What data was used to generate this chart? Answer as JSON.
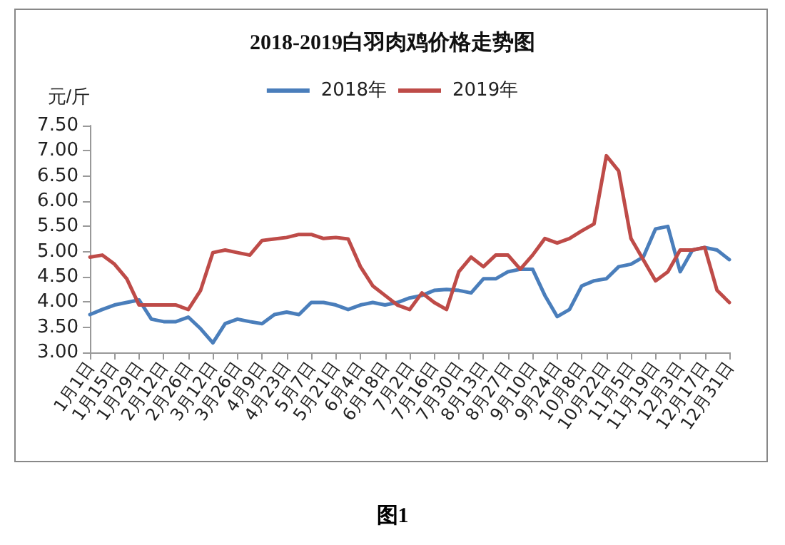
{
  "chart_data": {
    "type": "line",
    "title": "2018-2019白羽肉鸡价格走势图",
    "ylabel": "元/斤",
    "annotations": [
      "图1"
    ],
    "categories": [
      "1月1日",
      null,
      "1月15日",
      null,
      "1月29日",
      null,
      "2月12日",
      null,
      "2月26日",
      null,
      "3月12日",
      null,
      "3月26日",
      null,
      "4月9日",
      null,
      "4月23日",
      null,
      "5月7日",
      null,
      "5月21日",
      null,
      "6月4日",
      null,
      "6月18日",
      null,
      "7月2日",
      null,
      "7月16日",
      null,
      "7月30日",
      null,
      "8月13日",
      null,
      "8月27日",
      null,
      "9月10日",
      null,
      "9月24日",
      null,
      "10月8日",
      null,
      "10月22日",
      null,
      "11月5日",
      null,
      "11月19日",
      null,
      "12月3日",
      null,
      "12月17日",
      null,
      "12月31日"
    ],
    "series": [
      {
        "name": "2018年",
        "color": "#4a7ebb",
        "values": [
          3.75,
          3.85,
          3.94,
          3.99,
          4.04,
          3.66,
          3.61,
          3.61,
          3.7,
          3.47,
          3.19,
          3.57,
          3.66,
          3.61,
          3.57,
          3.75,
          3.8,
          3.75,
          3.99,
          3.99,
          3.94,
          3.85,
          3.94,
          3.99,
          3.94,
          3.99,
          4.08,
          4.13,
          4.23,
          4.25,
          4.23,
          4.18,
          4.46,
          4.46,
          4.6,
          4.65,
          4.65,
          4.13,
          3.71,
          3.85,
          4.32,
          4.42,
          4.46,
          4.7,
          4.75,
          4.89,
          5.45,
          5.5,
          4.6,
          5.03,
          5.08,
          5.03,
          4.84
        ]
      },
      {
        "name": "2019年",
        "color": "#be4b48",
        "values": [
          4.89,
          4.93,
          4.75,
          4.46,
          3.94,
          3.94,
          3.94,
          3.94,
          3.85,
          4.23,
          4.98,
          5.03,
          4.98,
          4.93,
          5.22,
          5.25,
          5.28,
          5.34,
          5.34,
          5.26,
          5.28,
          5.25,
          4.7,
          4.32,
          4.13,
          3.94,
          3.85,
          4.18,
          3.99,
          3.85,
          4.6,
          4.89,
          4.7,
          4.93,
          4.93,
          4.65,
          4.93,
          5.26,
          5.17,
          5.26,
          5.41,
          5.55,
          6.9,
          6.6,
          5.26,
          4.84,
          4.42,
          4.6,
          5.03,
          5.03,
          5.08,
          4.23,
          3.99
        ]
      }
    ],
    "ylim": [
      3,
      7.5
    ],
    "yticks": [
      {
        "value": 3,
        "label": "3.00"
      },
      {
        "value": 3.5,
        "label": "3.50"
      },
      {
        "value": 4,
        "label": "4.00"
      },
      {
        "value": 4.5,
        "label": "4.50"
      },
      {
        "value": 5,
        "label": "5.00"
      },
      {
        "value": 5.5,
        "label": "5.50"
      },
      {
        "value": 6,
        "label": "6.00"
      },
      {
        "value": 6.5,
        "label": "6.50"
      },
      {
        "value": 7,
        "label": "7.00"
      },
      {
        "value": 7.5,
        "label": "7.50"
      }
    ],
    "legend": "top",
    "grid": false,
    "marker": "none",
    "line_style": "solid"
  }
}
